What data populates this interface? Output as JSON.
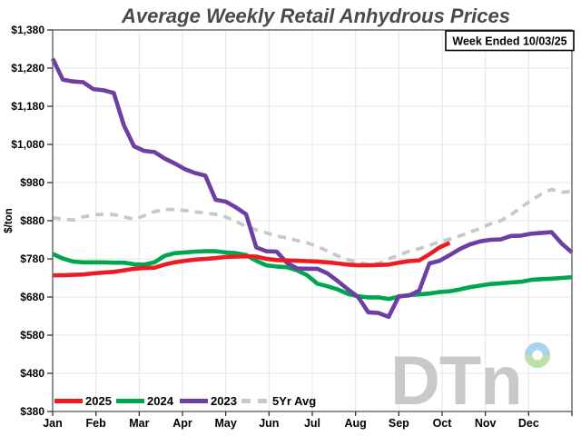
{
  "title": "Average Weekly Retail Anhydrous Prices",
  "annotation": {
    "label": "Week Ended 10/03/25"
  },
  "watermark": {
    "text": "DTn"
  },
  "axes": {
    "y_unit_label": "$/ton",
    "y_ticks": [
      {
        "v": 1380,
        "label": "$1,380"
      },
      {
        "v": 1280,
        "label": "$1,280"
      },
      {
        "v": 1180,
        "label": "$1,180"
      },
      {
        "v": 1080,
        "label": "$1,080"
      },
      {
        "v": 980,
        "label": "$980"
      },
      {
        "v": 880,
        "label": "$880"
      },
      {
        "v": 780,
        "label": "$780"
      },
      {
        "v": 680,
        "label": "$680"
      },
      {
        "v": 580,
        "label": "$580"
      },
      {
        "v": 480,
        "label": "$480"
      },
      {
        "v": 380,
        "label": "$380"
      }
    ],
    "x_ticks": [
      "Jan",
      "Feb",
      "Mar",
      "Apr",
      "May",
      "Jun",
      "Jul",
      "Aug",
      "Sep",
      "Oct",
      "Nov",
      "Dec"
    ]
  },
  "legend": [
    {
      "label": "2025",
      "series": "2025"
    },
    {
      "label": "2024",
      "series": "2024"
    },
    {
      "label": "2023",
      "series": "2023"
    },
    {
      "label": "5Yr Avg",
      "series": "5Yr Avg"
    }
  ],
  "chart_data": {
    "type": "line",
    "title": "Average Weekly Retail Anhydrous Prices",
    "xlabel": "",
    "ylabel": "$/ton",
    "x_unit": "week-of-year (52 weekly points, Jan-Dec)",
    "ylim": [
      380,
      1380
    ],
    "weeks": 52,
    "grid": true,
    "legend_position": "bottom-left-inside",
    "series": [
      {
        "name": "5Yr Avg",
        "color": "#c8c8c8",
        "dashed": true,
        "values": [
          888,
          884,
          882,
          890,
          895,
          897,
          896,
          890,
          884,
          893,
          904,
          909,
          910,
          907,
          903,
          900,
          897,
          890,
          878,
          865,
          856,
          848,
          840,
          835,
          828,
          822,
          813,
          800,
          788,
          778,
          770,
          766,
          768,
          780,
          790,
          800,
          807,
          815,
          825,
          832,
          840,
          850,
          860,
          872,
          880,
          895,
          915,
          933,
          950,
          962,
          955,
          957
        ]
      },
      {
        "name": "2024",
        "color": "#00a64f",
        "dashed": false,
        "values": [
          793,
          781,
          773,
          771,
          771,
          771,
          770,
          770,
          766,
          765,
          771,
          788,
          795,
          797,
          799,
          800,
          800,
          797,
          795,
          790,
          775,
          763,
          760,
          758,
          750,
          737,
          715,
          708,
          700,
          688,
          682,
          679,
          679,
          675,
          681,
          685,
          687,
          689,
          693,
          695,
          700,
          706,
          710,
          714,
          716,
          718,
          720,
          725,
          727,
          728,
          730,
          732
        ]
      },
      {
        "name": "2023",
        "color": "#6e3fa3",
        "dashed": false,
        "values": [
          1305,
          1250,
          1245,
          1243,
          1225,
          1222,
          1215,
          1130,
          1075,
          1063,
          1060,
          1043,
          1030,
          1015,
          1005,
          998,
          935,
          930,
          915,
          897,
          810,
          800,
          799,
          770,
          755,
          754,
          754,
          742,
          722,
          700,
          680,
          640,
          638,
          628,
          682,
          684,
          697,
          768,
          775,
          790,
          806,
          818,
          826,
          830,
          831,
          840,
          841,
          846,
          848,
          850,
          820,
          797
        ]
      },
      {
        "name": "2025",
        "color": "#ec1c24",
        "dashed": false,
        "values": [
          737,
          737,
          738,
          739,
          742,
          744,
          746,
          750,
          754,
          756,
          757,
          765,
          771,
          775,
          778,
          780,
          782,
          785,
          786,
          787,
          786,
          780,
          777,
          776,
          775,
          774,
          773,
          771,
          768,
          765,
          763,
          763,
          764,
          765,
          770,
          774,
          776,
          792,
          810,
          822
        ]
      }
    ]
  },
  "colors": {
    "frame": "#6e6e6e",
    "grid": "#e9e9e9",
    "tick": "#333333",
    "title": "#4a4a4a",
    "watermark_gray": "#c9c9c9",
    "logo_donut_blue": "#a8d4f0",
    "logo_donut_green": "#bfe0a8"
  }
}
